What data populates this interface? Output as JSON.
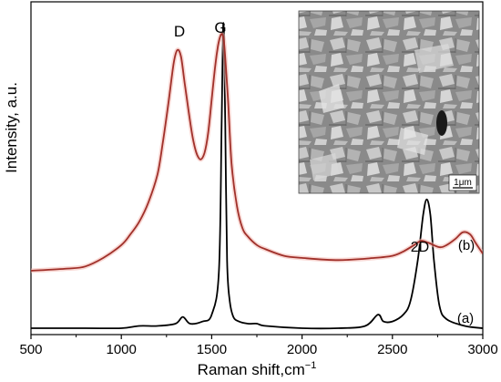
{
  "chart_data": {
    "type": "line",
    "xlabel": "Raman shift,cm",
    "xlabel_superscript": "−1",
    "ylabel": "Intensity, a.u.",
    "xlim": [
      500,
      3000
    ],
    "xticks": [
      500,
      1000,
      1500,
      2000,
      2500,
      3000
    ],
    "grid": false,
    "series": [
      {
        "name": "(a)",
        "color": "#000000",
        "x": [
          500,
          800,
          1000,
          1100,
          1200,
          1300,
          1340,
          1380,
          1450,
          1500,
          1540,
          1555,
          1565,
          1575,
          1585,
          1600,
          1620,
          1650,
          1700,
          1750,
          1800,
          2000,
          2200,
          2350,
          2420,
          2450,
          2500,
          2560,
          2600,
          2640,
          2670,
          2690,
          2710,
          2730,
          2760,
          2800,
          2900,
          3000
        ],
        "y": [
          0.0,
          0.0,
          0.0,
          0.01,
          0.01,
          0.02,
          0.05,
          0.02,
          0.03,
          0.06,
          0.25,
          0.9,
          1.35,
          0.9,
          0.3,
          0.12,
          0.05,
          0.03,
          0.02,
          0.02,
          0.01,
          0.0,
          0.0,
          0.01,
          0.06,
          0.03,
          0.03,
          0.06,
          0.12,
          0.3,
          0.5,
          0.57,
          0.5,
          0.3,
          0.1,
          0.04,
          0.01,
          0.0
        ]
      },
      {
        "name": "(b)",
        "color": "#a0302a",
        "x": [
          500,
          700,
          800,
          900,
          1000,
          1050,
          1100,
          1150,
          1200,
          1230,
          1260,
          1290,
          1310,
          1330,
          1350,
          1380,
          1400,
          1420,
          1440,
          1460,
          1480,
          1500,
          1520,
          1535,
          1550,
          1560,
          1570,
          1590,
          1610,
          1640,
          1670,
          1700,
          1750,
          1800,
          1900,
          2000,
          2200,
          2400,
          2500,
          2560,
          2620,
          2660,
          2700,
          2760,
          2800,
          2850,
          2890,
          2930,
          2960,
          3000
        ],
        "y": [
          0.0,
          0.01,
          0.02,
          0.06,
          0.12,
          0.17,
          0.23,
          0.32,
          0.45,
          0.6,
          0.78,
          0.97,
          1.03,
          1.0,
          0.88,
          0.7,
          0.6,
          0.54,
          0.52,
          0.55,
          0.64,
          0.8,
          0.96,
          1.05,
          1.1,
          1.1,
          1.05,
          0.8,
          0.5,
          0.3,
          0.2,
          0.16,
          0.12,
          0.1,
          0.07,
          0.06,
          0.05,
          0.06,
          0.07,
          0.09,
          0.12,
          0.14,
          0.13,
          0.11,
          0.12,
          0.15,
          0.18,
          0.17,
          0.13,
          0.08
        ]
      }
    ],
    "annotations": {
      "D": "D",
      "G": "G",
      "2D": "2D",
      "b": "(b)",
      "a": "(a)"
    },
    "inset": {
      "description_type": "SEM micrograph",
      "scale_label": "1μm"
    }
  }
}
